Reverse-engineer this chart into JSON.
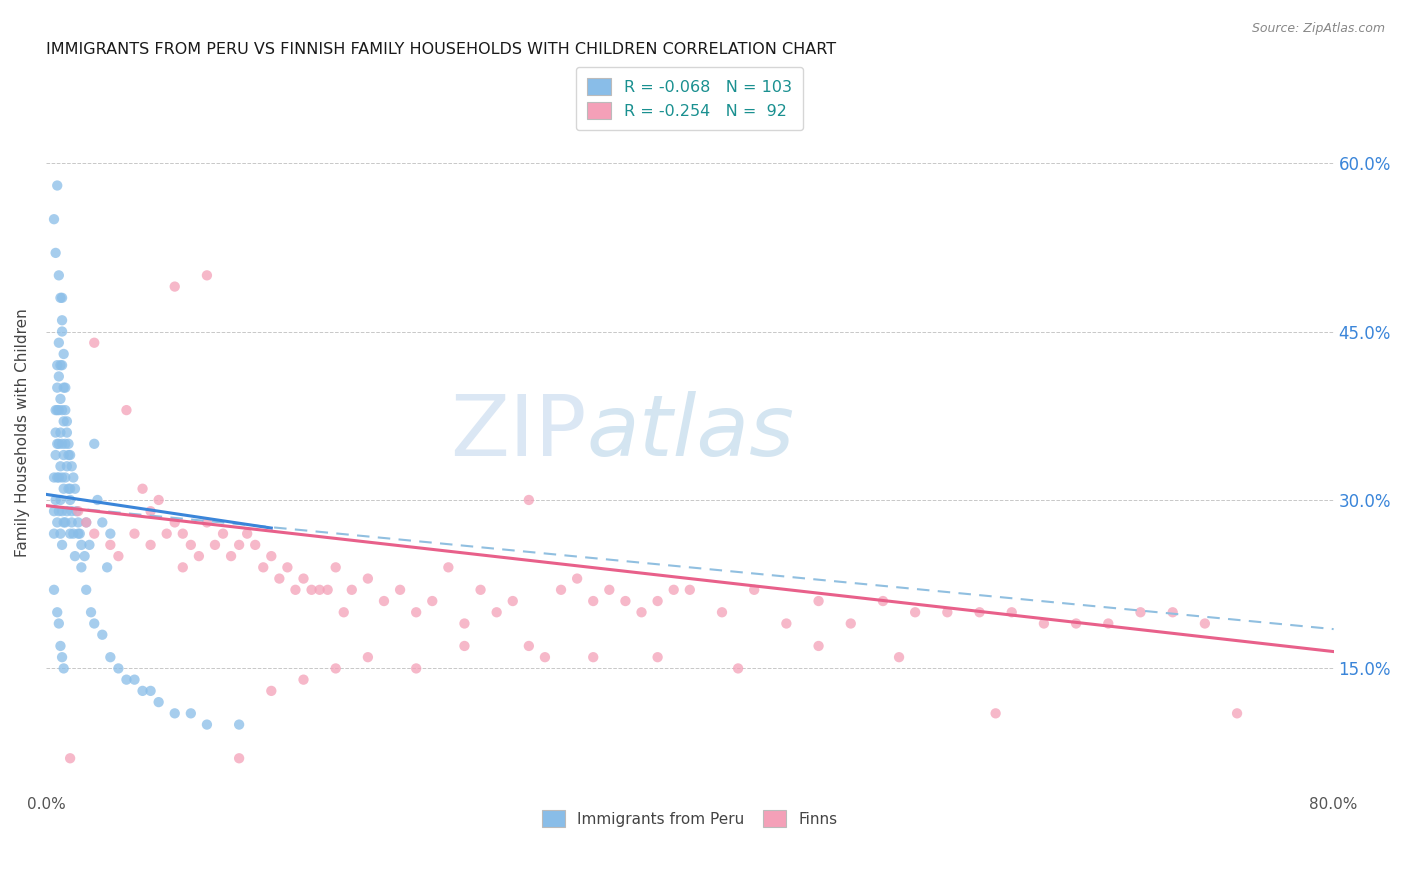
{
  "title": "IMMIGRANTS FROM PERU VS FINNISH FAMILY HOUSEHOLDS WITH CHILDREN CORRELATION CHART",
  "source": "Source: ZipAtlas.com",
  "ylabel": "Family Households with Children",
  "ytick_labels": [
    "15.0%",
    "30.0%",
    "45.0%",
    "60.0%"
  ],
  "ytick_values": [
    0.15,
    0.3,
    0.45,
    0.6
  ],
  "xlim": [
    0.0,
    0.8
  ],
  "ylim": [
    0.04,
    0.68
  ],
  "color_blue": "#89bde8",
  "color_pink": "#f4a0b8",
  "watermark_zip": "ZIP",
  "watermark_atlas": "atlas",
  "blue_scatter_x": [
    0.005,
    0.005,
    0.005,
    0.006,
    0.006,
    0.006,
    0.006,
    0.007,
    0.007,
    0.007,
    0.007,
    0.007,
    0.007,
    0.008,
    0.008,
    0.008,
    0.008,
    0.008,
    0.008,
    0.009,
    0.009,
    0.009,
    0.009,
    0.009,
    0.009,
    0.01,
    0.01,
    0.01,
    0.01,
    0.01,
    0.01,
    0.01,
    0.01,
    0.011,
    0.011,
    0.011,
    0.011,
    0.011,
    0.012,
    0.012,
    0.012,
    0.012,
    0.013,
    0.013,
    0.013,
    0.014,
    0.014,
    0.015,
    0.015,
    0.015,
    0.016,
    0.016,
    0.017,
    0.017,
    0.018,
    0.019,
    0.02,
    0.021,
    0.022,
    0.024,
    0.025,
    0.027,
    0.03,
    0.032,
    0.035,
    0.038,
    0.04,
    0.005,
    0.005,
    0.006,
    0.007,
    0.007,
    0.008,
    0.008,
    0.009,
    0.009,
    0.01,
    0.01,
    0.011,
    0.011,
    0.012,
    0.013,
    0.014,
    0.015,
    0.016,
    0.018,
    0.02,
    0.022,
    0.025,
    0.028,
    0.03,
    0.035,
    0.04,
    0.045,
    0.05,
    0.055,
    0.06,
    0.065,
    0.07,
    0.08,
    0.09,
    0.1,
    0.12
  ],
  "blue_scatter_y": [
    0.32,
    0.29,
    0.27,
    0.38,
    0.36,
    0.34,
    0.3,
    0.42,
    0.4,
    0.38,
    0.35,
    0.32,
    0.28,
    0.44,
    0.41,
    0.38,
    0.35,
    0.32,
    0.29,
    0.42,
    0.39,
    0.36,
    0.33,
    0.3,
    0.27,
    0.48,
    0.45,
    0.42,
    0.38,
    0.35,
    0.32,
    0.29,
    0.26,
    0.4,
    0.37,
    0.34,
    0.31,
    0.28,
    0.38,
    0.35,
    0.32,
    0.28,
    0.36,
    0.33,
    0.29,
    0.35,
    0.31,
    0.34,
    0.3,
    0.27,
    0.33,
    0.28,
    0.32,
    0.27,
    0.31,
    0.29,
    0.28,
    0.27,
    0.26,
    0.25,
    0.28,
    0.26,
    0.35,
    0.3,
    0.28,
    0.24,
    0.27,
    0.55,
    0.22,
    0.52,
    0.58,
    0.2,
    0.5,
    0.19,
    0.48,
    0.17,
    0.46,
    0.16,
    0.43,
    0.15,
    0.4,
    0.37,
    0.34,
    0.31,
    0.29,
    0.25,
    0.27,
    0.24,
    0.22,
    0.2,
    0.19,
    0.18,
    0.16,
    0.15,
    0.14,
    0.14,
    0.13,
    0.13,
    0.12,
    0.11,
    0.11,
    0.1,
    0.1
  ],
  "pink_scatter_x": [
    0.015,
    0.02,
    0.025,
    0.03,
    0.03,
    0.04,
    0.045,
    0.05,
    0.055,
    0.06,
    0.065,
    0.065,
    0.07,
    0.075,
    0.08,
    0.085,
    0.085,
    0.09,
    0.095,
    0.1,
    0.105,
    0.11,
    0.115,
    0.12,
    0.125,
    0.13,
    0.135,
    0.14,
    0.145,
    0.15,
    0.155,
    0.16,
    0.165,
    0.17,
    0.175,
    0.18,
    0.185,
    0.19,
    0.2,
    0.21,
    0.22,
    0.23,
    0.24,
    0.25,
    0.26,
    0.27,
    0.28,
    0.29,
    0.3,
    0.31,
    0.32,
    0.33,
    0.34,
    0.35,
    0.36,
    0.37,
    0.38,
    0.39,
    0.4,
    0.42,
    0.44,
    0.46,
    0.48,
    0.5,
    0.52,
    0.54,
    0.56,
    0.58,
    0.6,
    0.62,
    0.64,
    0.66,
    0.68,
    0.7,
    0.72,
    0.74,
    0.08,
    0.1,
    0.12,
    0.14,
    0.16,
    0.18,
    0.2,
    0.23,
    0.26,
    0.3,
    0.34,
    0.38,
    0.43,
    0.48,
    0.53,
    0.59
  ],
  "pink_scatter_y": [
    0.07,
    0.29,
    0.28,
    0.27,
    0.44,
    0.26,
    0.25,
    0.38,
    0.27,
    0.31,
    0.29,
    0.26,
    0.3,
    0.27,
    0.28,
    0.27,
    0.24,
    0.26,
    0.25,
    0.28,
    0.26,
    0.27,
    0.25,
    0.26,
    0.27,
    0.26,
    0.24,
    0.25,
    0.23,
    0.24,
    0.22,
    0.23,
    0.22,
    0.22,
    0.22,
    0.24,
    0.2,
    0.22,
    0.23,
    0.21,
    0.22,
    0.2,
    0.21,
    0.24,
    0.19,
    0.22,
    0.2,
    0.21,
    0.3,
    0.16,
    0.22,
    0.23,
    0.21,
    0.22,
    0.21,
    0.2,
    0.21,
    0.22,
    0.22,
    0.2,
    0.22,
    0.19,
    0.21,
    0.19,
    0.21,
    0.2,
    0.2,
    0.2,
    0.2,
    0.19,
    0.19,
    0.19,
    0.2,
    0.2,
    0.19,
    0.11,
    0.49,
    0.5,
    0.07,
    0.13,
    0.14,
    0.15,
    0.16,
    0.15,
    0.17,
    0.17,
    0.16,
    0.16,
    0.15,
    0.17,
    0.16,
    0.11
  ],
  "blue_line_x0": 0.0,
  "blue_line_x1": 0.14,
  "blue_line_y0": 0.305,
  "blue_line_y1": 0.275,
  "pink_line_x0": 0.0,
  "pink_line_x1": 0.8,
  "pink_line_y0": 0.295,
  "pink_line_y1": 0.165,
  "dash_line_x0": 0.0,
  "dash_line_x1": 0.8,
  "dash_line_y0": 0.295,
  "dash_line_y1": 0.185
}
